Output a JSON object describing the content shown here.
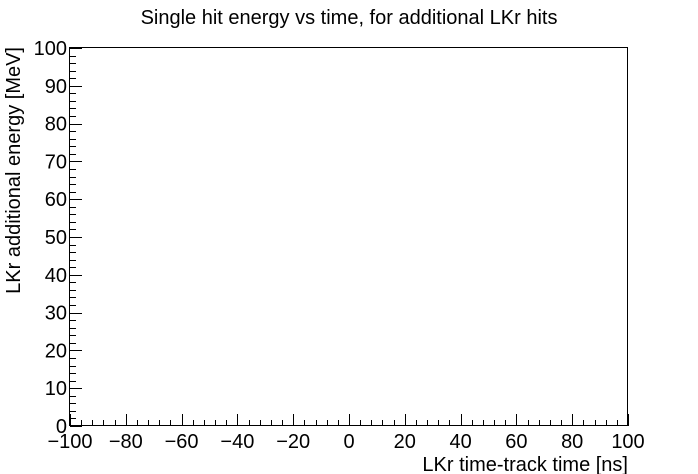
{
  "chart_data": {
    "type": "scatter",
    "title": "Single hit energy vs time, for additional LKr hits",
    "xlabel": "LKr time-track time [ns]",
    "ylabel": "LKr additional energy [MeV]",
    "xlim": [
      -100,
      100
    ],
    "ylim": [
      0,
      100
    ],
    "x_ticks": [
      -100,
      -80,
      -60,
      -40,
      -20,
      0,
      20,
      40,
      60,
      80,
      100
    ],
    "x_tick_labels": [
      "−100",
      "−80",
      "−60",
      "−40",
      "−20",
      "0",
      "20",
      "40",
      "60",
      "80",
      "100"
    ],
    "y_ticks": [
      0,
      10,
      20,
      30,
      40,
      50,
      60,
      70,
      80,
      90,
      100
    ],
    "y_tick_labels": [
      "0",
      "10",
      "20",
      "30",
      "40",
      "50",
      "60",
      "70",
      "80",
      "90",
      "100"
    ],
    "grid": false,
    "series": []
  }
}
